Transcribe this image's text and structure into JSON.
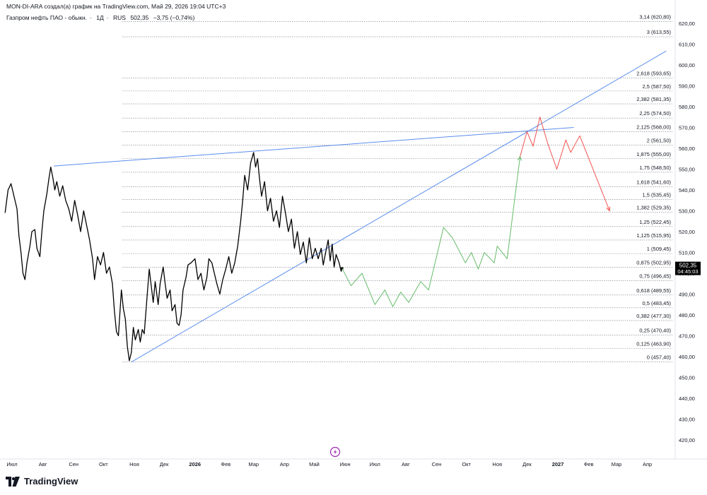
{
  "header": {
    "author_line": "MON-DI-ARA создал(а) график на TradingView.com, Май 29, 2026 19:04 UTC+3"
  },
  "symbol": {
    "name": "Газпром нефть ПАО - обыкн.",
    "interval": "1Д",
    "exchange": "RUS",
    "last": "502,35",
    "change": "−3,75 (−0,74%)"
  },
  "price_badge": {
    "price": "502,35",
    "countdown": "04:45:03"
  },
  "brand": {
    "name": "TradingView"
  },
  "chart_data": {
    "type": "line",
    "y_axis": {
      "range": [
        415,
        626
      ],
      "ticks": [
        {
          "value": 620,
          "label": "620,00"
        },
        {
          "value": 610,
          "label": "610,00"
        },
        {
          "value": 600,
          "label": "600,00"
        },
        {
          "value": 590,
          "label": "590,00"
        },
        {
          "value": 580,
          "label": "580,00"
        },
        {
          "value": 570,
          "label": "570,00"
        },
        {
          "value": 560,
          "label": "560,00"
        },
        {
          "value": 550,
          "label": "550,00"
        },
        {
          "value": 540,
          "label": "540,00"
        },
        {
          "value": 530,
          "label": "530,00"
        },
        {
          "value": 520,
          "label": "520,00"
        },
        {
          "value": 510,
          "label": "510,00"
        },
        {
          "value": 500,
          "label": "500,00"
        },
        {
          "value": 490,
          "label": "490,00"
        },
        {
          "value": 480,
          "label": "480,00"
        },
        {
          "value": 470,
          "label": "470,00"
        },
        {
          "value": 460,
          "label": "460,00"
        },
        {
          "value": 450,
          "label": "450,00"
        },
        {
          "value": 440,
          "label": "440,00"
        },
        {
          "value": 430,
          "label": "430,00"
        },
        {
          "value": 420,
          "label": "420,00"
        }
      ]
    },
    "x_axis": {
      "ticks": [
        {
          "date": "2025-07-01",
          "label": "Июл",
          "bold": false
        },
        {
          "date": "2025-08-01",
          "label": "Авг",
          "bold": false
        },
        {
          "date": "2025-09-01",
          "label": "Сен",
          "bold": false
        },
        {
          "date": "2025-10-01",
          "label": "Окт",
          "bold": false
        },
        {
          "date": "2025-11-01",
          "label": "Ноя",
          "bold": false
        },
        {
          "date": "2025-12-01",
          "label": "Дек",
          "bold": false
        },
        {
          "date": "2026-01-01",
          "label": "2026",
          "bold": true
        },
        {
          "date": "2026-02-01",
          "label": "Фев",
          "bold": false
        },
        {
          "date": "2026-03-01",
          "label": "Мар",
          "bold": false
        },
        {
          "date": "2026-04-01",
          "label": "Апр",
          "bold": false
        },
        {
          "date": "2026-05-01",
          "label": "Май",
          "bold": false
        },
        {
          "date": "2026-06-01",
          "label": "Июн",
          "bold": false
        },
        {
          "date": "2026-07-01",
          "label": "Июл",
          "bold": false
        },
        {
          "date": "2026-08-01",
          "label": "Авг",
          "bold": false
        },
        {
          "date": "2026-09-01",
          "label": "Сен",
          "bold": false
        },
        {
          "date": "2026-10-01",
          "label": "Окт",
          "bold": false
        },
        {
          "date": "2026-11-01",
          "label": "Ноя",
          "bold": false
        },
        {
          "date": "2026-12-01",
          "label": "Дек",
          "bold": false
        },
        {
          "date": "2027-01-01",
          "label": "2027",
          "bold": true
        },
        {
          "date": "2027-02-01",
          "label": "Фев",
          "bold": false
        },
        {
          "date": "2027-03-01",
          "label": "Мар",
          "bold": false
        },
        {
          "date": "2027-04-01",
          "label": "Апр",
          "bold": false
        }
      ]
    },
    "fib_levels": [
      {
        "ratio": "3,14",
        "price": 620.8,
        "label": "3,14 (620,80)"
      },
      {
        "ratio": "3",
        "price": 613.55,
        "label": "3 (613,55)"
      },
      {
        "ratio": "2,618",
        "price": 593.65,
        "label": "2,618 (593,65)"
      },
      {
        "ratio": "2,5",
        "price": 587.5,
        "label": "2,5 (587,50)"
      },
      {
        "ratio": "2,382",
        "price": 581.35,
        "label": "2,382 (581,35)"
      },
      {
        "ratio": "2,25",
        "price": 574.5,
        "label": "2,25 (574,50)"
      },
      {
        "ratio": "2,125",
        "price": 568.0,
        "label": "2,125 (568,00)"
      },
      {
        "ratio": "2",
        "price": 561.5,
        "label": "2 (561,50)"
      },
      {
        "ratio": "1,875",
        "price": 555.0,
        "label": "1,875 (555,00)"
      },
      {
        "ratio": "1,75",
        "price": 548.5,
        "label": "1,75 (548,50)"
      },
      {
        "ratio": "1,618",
        "price": 541.6,
        "label": "1,618 (541,60)"
      },
      {
        "ratio": "1,5",
        "price": 535.45,
        "label": "1,5 (535,45)"
      },
      {
        "ratio": "1,382",
        "price": 529.35,
        "label": "1,382 (529,35)"
      },
      {
        "ratio": "1,25",
        "price": 522.45,
        "label": "1,25 (522,45)"
      },
      {
        "ratio": "1,125",
        "price": 515.95,
        "label": "1,125 (515,95)"
      },
      {
        "ratio": "1",
        "price": 509.45,
        "label": "1 (509,45)"
      },
      {
        "ratio": "0,875",
        "price": 502.95,
        "label": "0,875 (502,95)"
      },
      {
        "ratio": "0,75",
        "price": 496.45,
        "label": "0,75 (496,45)"
      },
      {
        "ratio": "0,618",
        "price": 489.55,
        "label": "0,618 (489,55)"
      },
      {
        "ratio": "0,5",
        "price": 483.45,
        "label": "0,5 (483,45)"
      },
      {
        "ratio": "0,382",
        "price": 477.3,
        "label": "0,382 (477,30)"
      },
      {
        "ratio": "0,25",
        "price": 470.4,
        "label": "0,25 (470,40)"
      },
      {
        "ratio": "0,125",
        "price": 463.9,
        "label": "0,125 (463,90)"
      },
      {
        "ratio": "0",
        "price": 457.4,
        "label": "0 (457,40)"
      }
    ],
    "series": [
      {
        "role": "price",
        "color": "#000000",
        "points": [
          [
            "2025-06-24",
            529
          ],
          [
            "2025-06-27",
            540
          ],
          [
            "2025-06-30",
            543
          ],
          [
            "2025-07-03",
            537
          ],
          [
            "2025-07-06",
            531
          ],
          [
            "2025-07-08",
            518
          ],
          [
            "2025-07-10",
            510
          ],
          [
            "2025-07-12",
            500
          ],
          [
            "2025-07-14",
            497
          ],
          [
            "2025-07-16",
            505
          ],
          [
            "2025-07-19",
            513
          ],
          [
            "2025-07-21",
            520
          ],
          [
            "2025-07-24",
            521
          ],
          [
            "2025-07-26",
            512
          ],
          [
            "2025-07-29",
            508
          ],
          [
            "2025-07-31",
            520
          ],
          [
            "2025-08-02",
            530
          ],
          [
            "2025-08-05",
            538
          ],
          [
            "2025-08-07",
            545
          ],
          [
            "2025-08-09",
            551
          ],
          [
            "2025-08-11",
            546
          ],
          [
            "2025-08-13",
            540
          ],
          [
            "2025-08-15",
            544
          ],
          [
            "2025-08-18",
            537
          ],
          [
            "2025-08-21",
            542
          ],
          [
            "2025-08-24",
            535
          ],
          [
            "2025-08-27",
            531
          ],
          [
            "2025-08-30",
            525
          ],
          [
            "2025-09-02",
            535
          ],
          [
            "2025-09-05",
            528
          ],
          [
            "2025-09-08",
            520
          ],
          [
            "2025-09-11",
            530
          ],
          [
            "2025-09-14",
            523
          ],
          [
            "2025-09-17",
            516
          ],
          [
            "2025-09-20",
            507
          ],
          [
            "2025-09-22",
            497
          ],
          [
            "2025-09-25",
            508
          ],
          [
            "2025-09-28",
            504
          ],
          [
            "2025-10-01",
            510
          ],
          [
            "2025-10-04",
            500
          ],
          [
            "2025-10-07",
            503
          ],
          [
            "2025-10-10",
            495
          ],
          [
            "2025-10-12",
            482
          ],
          [
            "2025-10-14",
            472
          ],
          [
            "2025-10-16",
            470
          ],
          [
            "2025-10-19",
            492
          ],
          [
            "2025-10-21",
            483
          ],
          [
            "2025-10-23",
            478
          ],
          [
            "2025-10-25",
            465
          ],
          [
            "2025-10-27",
            458
          ],
          [
            "2025-10-29",
            462
          ],
          [
            "2025-10-31",
            474
          ],
          [
            "2025-11-02",
            468
          ],
          [
            "2025-11-05",
            473
          ],
          [
            "2025-11-07",
            467
          ],
          [
            "2025-11-09",
            473
          ],
          [
            "2025-11-11",
            471
          ],
          [
            "2025-11-14",
            490
          ],
          [
            "2025-11-16",
            502
          ],
          [
            "2025-11-18",
            494
          ],
          [
            "2025-11-20",
            486
          ],
          [
            "2025-11-22",
            496
          ],
          [
            "2025-11-25",
            485
          ],
          [
            "2025-11-27",
            495
          ],
          [
            "2025-11-30",
            503
          ],
          [
            "2025-12-02",
            495
          ],
          [
            "2025-12-04",
            488
          ],
          [
            "2025-12-07",
            492
          ],
          [
            "2025-12-09",
            482
          ],
          [
            "2025-12-12",
            485
          ],
          [
            "2025-12-14",
            476
          ],
          [
            "2025-12-16",
            475
          ],
          [
            "2025-12-18",
            480
          ],
          [
            "2025-12-20",
            492
          ],
          [
            "2025-12-23",
            498
          ],
          [
            "2025-12-25",
            504
          ],
          [
            "2025-12-28",
            505
          ],
          [
            "2026-01-01",
            507
          ],
          [
            "2026-01-04",
            497
          ],
          [
            "2026-01-07",
            500
          ],
          [
            "2026-01-10",
            492
          ],
          [
            "2026-01-13",
            498
          ],
          [
            "2026-01-15",
            507
          ],
          [
            "2026-01-18",
            505
          ],
          [
            "2026-01-20",
            501
          ],
          [
            "2026-01-23",
            495
          ],
          [
            "2026-01-26",
            490
          ],
          [
            "2026-01-29",
            497
          ],
          [
            "2026-02-01",
            502
          ],
          [
            "2026-02-04",
            508
          ],
          [
            "2026-02-07",
            500
          ],
          [
            "2026-02-10",
            505
          ],
          [
            "2026-02-13",
            513
          ],
          [
            "2026-02-16",
            525
          ],
          [
            "2026-02-18",
            535
          ],
          [
            "2026-02-20",
            547
          ],
          [
            "2026-02-23",
            540
          ],
          [
            "2026-02-26",
            553
          ],
          [
            "2026-03-01",
            558
          ],
          [
            "2026-03-03",
            551
          ],
          [
            "2026-03-05",
            555
          ],
          [
            "2026-03-07",
            545
          ],
          [
            "2026-03-09",
            537
          ],
          [
            "2026-03-12",
            544
          ],
          [
            "2026-03-15",
            530
          ],
          [
            "2026-03-18",
            536
          ],
          [
            "2026-03-21",
            525
          ],
          [
            "2026-03-24",
            530
          ],
          [
            "2026-03-27",
            522
          ],
          [
            "2026-03-30",
            537
          ],
          [
            "2026-04-02",
            529
          ],
          [
            "2026-04-05",
            520
          ],
          [
            "2026-04-08",
            526
          ],
          [
            "2026-04-11",
            512
          ],
          [
            "2026-04-14",
            520
          ],
          [
            "2026-04-17",
            509
          ],
          [
            "2026-04-20",
            515
          ],
          [
            "2026-04-23",
            505
          ],
          [
            "2026-04-26",
            517
          ],
          [
            "2026-04-29",
            507
          ],
          [
            "2026-05-02",
            512
          ],
          [
            "2026-05-05",
            507
          ],
          [
            "2026-05-08",
            512
          ],
          [
            "2026-05-10",
            504
          ],
          [
            "2026-05-12",
            509
          ],
          [
            "2026-05-15",
            516
          ],
          [
            "2026-05-17",
            506
          ],
          [
            "2026-05-19",
            514
          ],
          [
            "2026-05-21",
            503
          ],
          [
            "2026-05-23",
            509
          ],
          [
            "2026-05-26",
            505
          ],
          [
            "2026-05-28",
            501
          ],
          [
            "2026-05-29",
            502.35
          ]
        ]
      },
      {
        "role": "projection-up",
        "color": "#66bb6a",
        "points": [
          [
            "2026-05-29",
            502.35
          ],
          [
            "2026-06-07",
            494
          ],
          [
            "2026-06-18",
            500
          ],
          [
            "2026-07-01",
            485
          ],
          [
            "2026-07-11",
            492
          ],
          [
            "2026-07-19",
            484
          ],
          [
            "2026-07-27",
            491
          ],
          [
            "2026-08-04",
            486
          ],
          [
            "2026-08-16",
            496
          ],
          [
            "2026-08-24",
            492
          ],
          [
            "2026-09-08",
            522
          ],
          [
            "2026-09-17",
            517
          ],
          [
            "2026-09-30",
            505
          ],
          [
            "2026-10-06",
            510
          ],
          [
            "2026-10-13",
            502
          ],
          [
            "2026-10-19",
            510
          ],
          [
            "2026-10-29",
            505
          ],
          [
            "2026-11-01",
            513
          ],
          [
            "2026-11-11",
            507
          ],
          [
            "2026-11-24",
            556
          ]
        ]
      },
      {
        "role": "projection-down",
        "color": "#ef5350",
        "points": [
          [
            "2026-11-24",
            556
          ],
          [
            "2026-12-01",
            568
          ],
          [
            "2026-12-07",
            561
          ],
          [
            "2026-12-14",
            575
          ],
          [
            "2026-12-22",
            562
          ],
          [
            "2026-12-31",
            550
          ],
          [
            "2027-01-09",
            564
          ],
          [
            "2027-01-14",
            558
          ],
          [
            "2027-01-23",
            566
          ],
          [
            "2027-02-22",
            530
          ]
        ]
      }
    ],
    "trendlines": [
      {
        "color": "#5b8def",
        "from": [
          "2025-08-12",
          551.5
        ],
        "to": [
          "2027-01-17",
          570
        ]
      },
      {
        "color": "#5b8def",
        "from": [
          "2025-10-29",
          457.4
        ],
        "to": [
          "2027-04-20",
          606.7
        ]
      }
    ],
    "last_price": 502.35,
    "badge_color": "#000000"
  }
}
